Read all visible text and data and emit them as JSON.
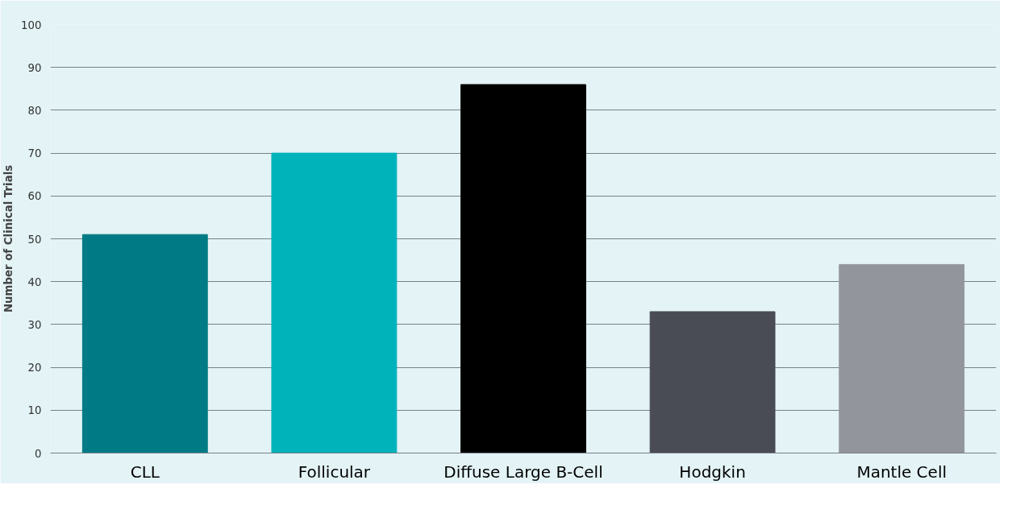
{
  "chart_data": {
    "type": "bar",
    "ylabel": "Number of Clinical Trials",
    "categories": [
      "CLL",
      "Follicular",
      "Diffuse Large B-Cell",
      "Hodgkin",
      "Mantle Cell"
    ],
    "values": [
      51,
      70,
      86,
      33,
      44
    ],
    "colors": [
      "#007a84",
      "#00b2ba",
      "#000000",
      "#494c55",
      "#93959d"
    ],
    "ylim": [
      0,
      100
    ],
    "yticks": [
      0,
      10,
      20,
      30,
      40,
      50,
      60,
      70,
      80,
      90,
      100
    ],
    "grid": "y"
  }
}
